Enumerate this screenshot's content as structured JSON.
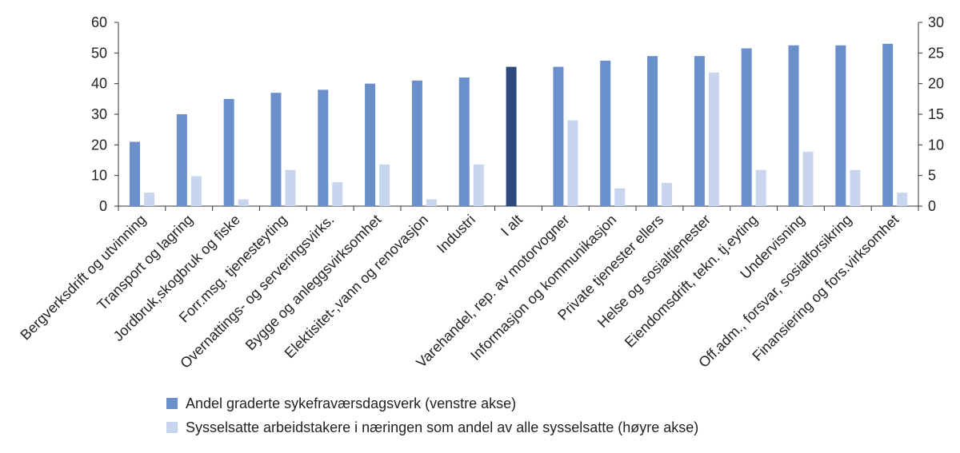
{
  "chart_data": {
    "type": "bar",
    "categories": [
      "Bergverksdrift og utvinning",
      "Transport og lagring",
      "Jordbruk,skogbruk og fiske",
      "Forr.msg. tjenesteyting",
      "Overnattings- og serveringsvirks.",
      "Bygge og anleggsvirksomhet",
      "Elektisitet-,vann og renovasjon",
      "Industri",
      "I alt",
      "Varehandel, rep. av motorvogner",
      "Informasjon og kommunikasjon",
      "Private tjenester ellers",
      "Helse og sosialtjenester",
      "Eiendomsdrift, tekn. tj.eyting",
      "Undervisning",
      "Off.adm., forsvar, sosialforsikring",
      "Finansiering og fors.virksomhet"
    ],
    "series": [
      {
        "name": "Andel graderte sykefraværsdagsverk (venstre akse)",
        "axis": "left",
        "color": "#6b8fca",
        "highlight_color": "#2e4a7d",
        "highlight_category": "I alt",
        "values": [
          21,
          30,
          35,
          37,
          38,
          40,
          41,
          42,
          45.5,
          45.5,
          47.5,
          49,
          49,
          51.5,
          52.5,
          52.5,
          53
        ]
      },
      {
        "name": "Sysselsatte arbeidstakere i næringen som andel av alle sysselsatte (høyre akse)",
        "axis": "right",
        "color": "#c7d5ee",
        "values": [
          2.2,
          4.9,
          1.1,
          5.9,
          3.9,
          6.8,
          1.1,
          6.8,
          null,
          14,
          2.9,
          3.8,
          21.8,
          5.9,
          8.9,
          5.9,
          2.2
        ]
      }
    ],
    "y_left": {
      "min": 0,
      "max": 60,
      "ticks": [
        0,
        10,
        20,
        30,
        40,
        50,
        60
      ]
    },
    "y_right": {
      "min": 0,
      "max": 30,
      "ticks": [
        0,
        5,
        10,
        15,
        20,
        25,
        30
      ]
    },
    "grid": false,
    "legend_position": "bottom"
  }
}
